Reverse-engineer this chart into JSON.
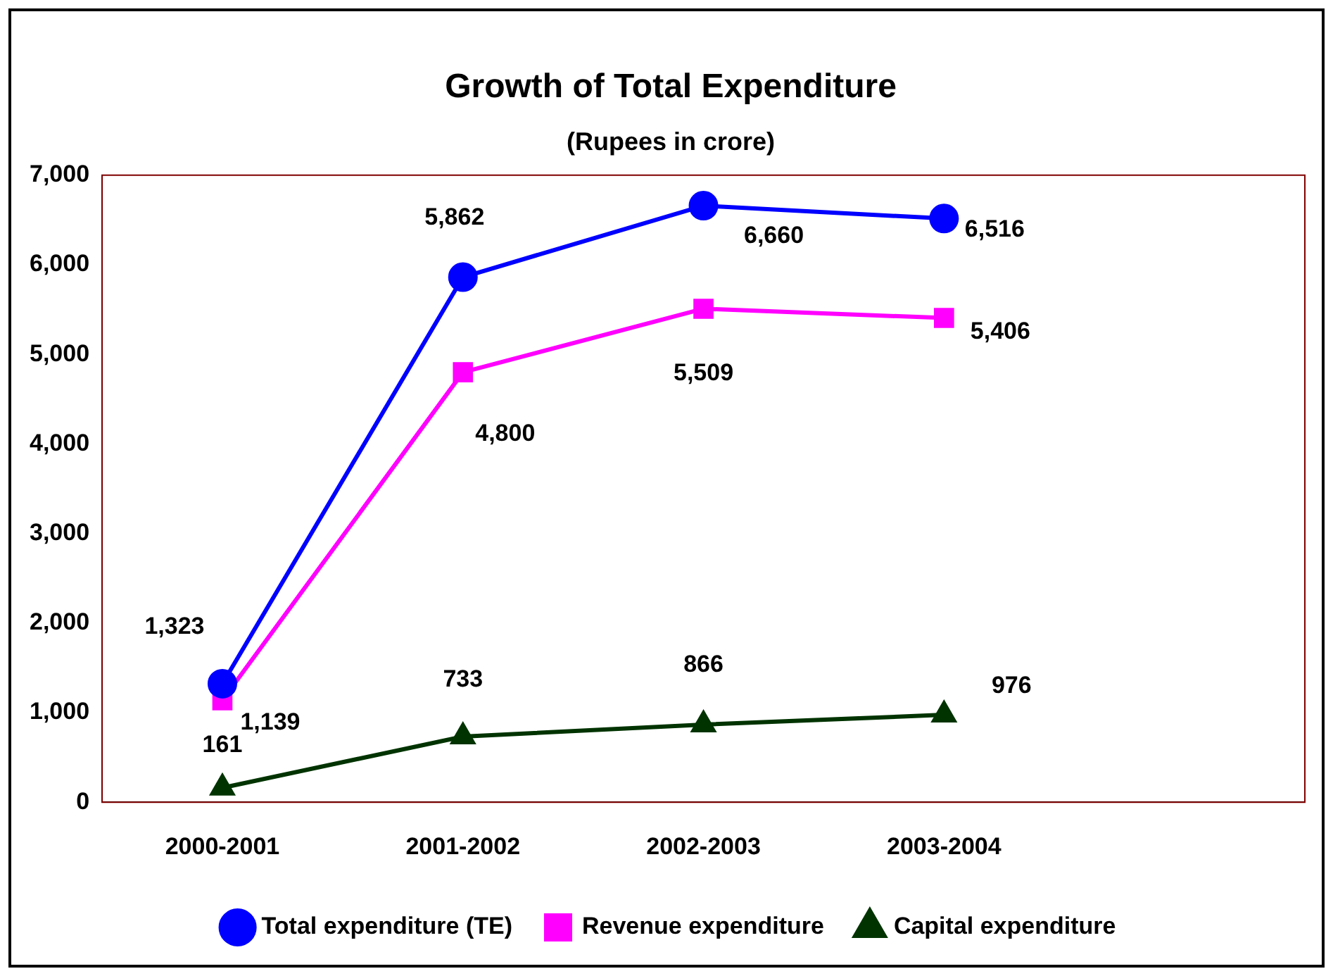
{
  "chart_data": {
    "type": "line",
    "title": "Growth of Total Expenditure",
    "subtitle": "(Rupees in crore)",
    "categories": [
      "2000-2001",
      "2001-2002",
      "2002-2003",
      "2003-2004",
      null
    ],
    "series": [
      {
        "name": "Total expenditure (TE)",
        "color": "#0000ff",
        "values": [
          1323,
          5862,
          6660,
          6516,
          null
        ],
        "value_labels": [
          "1,323",
          "5,862",
          "6,660",
          "6,516",
          null
        ],
        "marker": "circle"
      },
      {
        "name": "Revenue expenditure",
        "color": "#ff00ff",
        "values": [
          1139,
          4800,
          5509,
          5406,
          null
        ],
        "value_labels": [
          "1,139",
          "4,800",
          "5,509",
          "5,406",
          null
        ],
        "marker": "square"
      },
      {
        "name": "Capital expenditure",
        "color": "#003300",
        "values": [
          161,
          733,
          866,
          976,
          null
        ],
        "value_labels": [
          "161",
          "733",
          "866",
          "976",
          null
        ],
        "marker": "triangle"
      }
    ],
    "ylim": [
      0,
      7000
    ],
    "yticks": [
      {
        "value": 0,
        "label": "0"
      },
      {
        "value": 1000,
        "label": "1,000"
      },
      {
        "value": 2000,
        "label": "2,000"
      },
      {
        "value": 3000,
        "label": "3,000"
      },
      {
        "value": 4000,
        "label": "4,000"
      },
      {
        "value": 5000,
        "label": "5,000"
      },
      {
        "value": 6000,
        "label": "6,000"
      },
      {
        "value": 7000,
        "label": "7,000"
      }
    ],
    "grid": false,
    "legend": "bottom",
    "line_style": "solid"
  }
}
